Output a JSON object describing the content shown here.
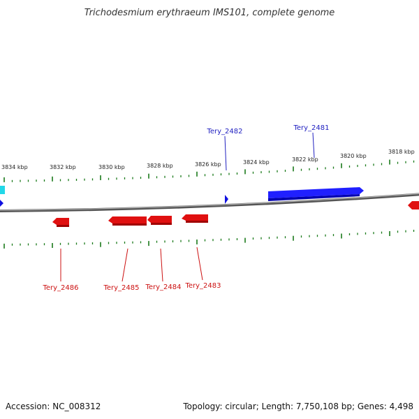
{
  "title": "Trichodesmium erythraeum IMS101, complete genome",
  "footer": {
    "accession": "Accession: NC_008312",
    "summary": "Topology: circular; Length: 7,750,108 bp; Genes: 4,498"
  },
  "colors": {
    "forward": "#1010e0",
    "reverse": "#e01010",
    "label_forward": "#2020c0",
    "label_reverse": "#cc1010",
    "ticks": "#1a7a1a",
    "backbone": "#707070",
    "other_feature": "#22d8e8"
  },
  "scale": {
    "labels": [
      "3834 kbp",
      "3832 kbp",
      "3830 kbp",
      "3828 kbp",
      "3826 kbp",
      "3824 kbp",
      "3822 kbp",
      "3820 kbp",
      "3818 kbp"
    ]
  },
  "genes": [
    {
      "name": "Tery_2482",
      "strand": "forward"
    },
    {
      "name": "Tery_2481",
      "strand": "forward"
    },
    {
      "name": "Tery_2486",
      "strand": "reverse"
    },
    {
      "name": "Tery_2485",
      "strand": "reverse"
    },
    {
      "name": "Tery_2484",
      "strand": "reverse"
    },
    {
      "name": "Tery_2483",
      "strand": "reverse"
    }
  ]
}
